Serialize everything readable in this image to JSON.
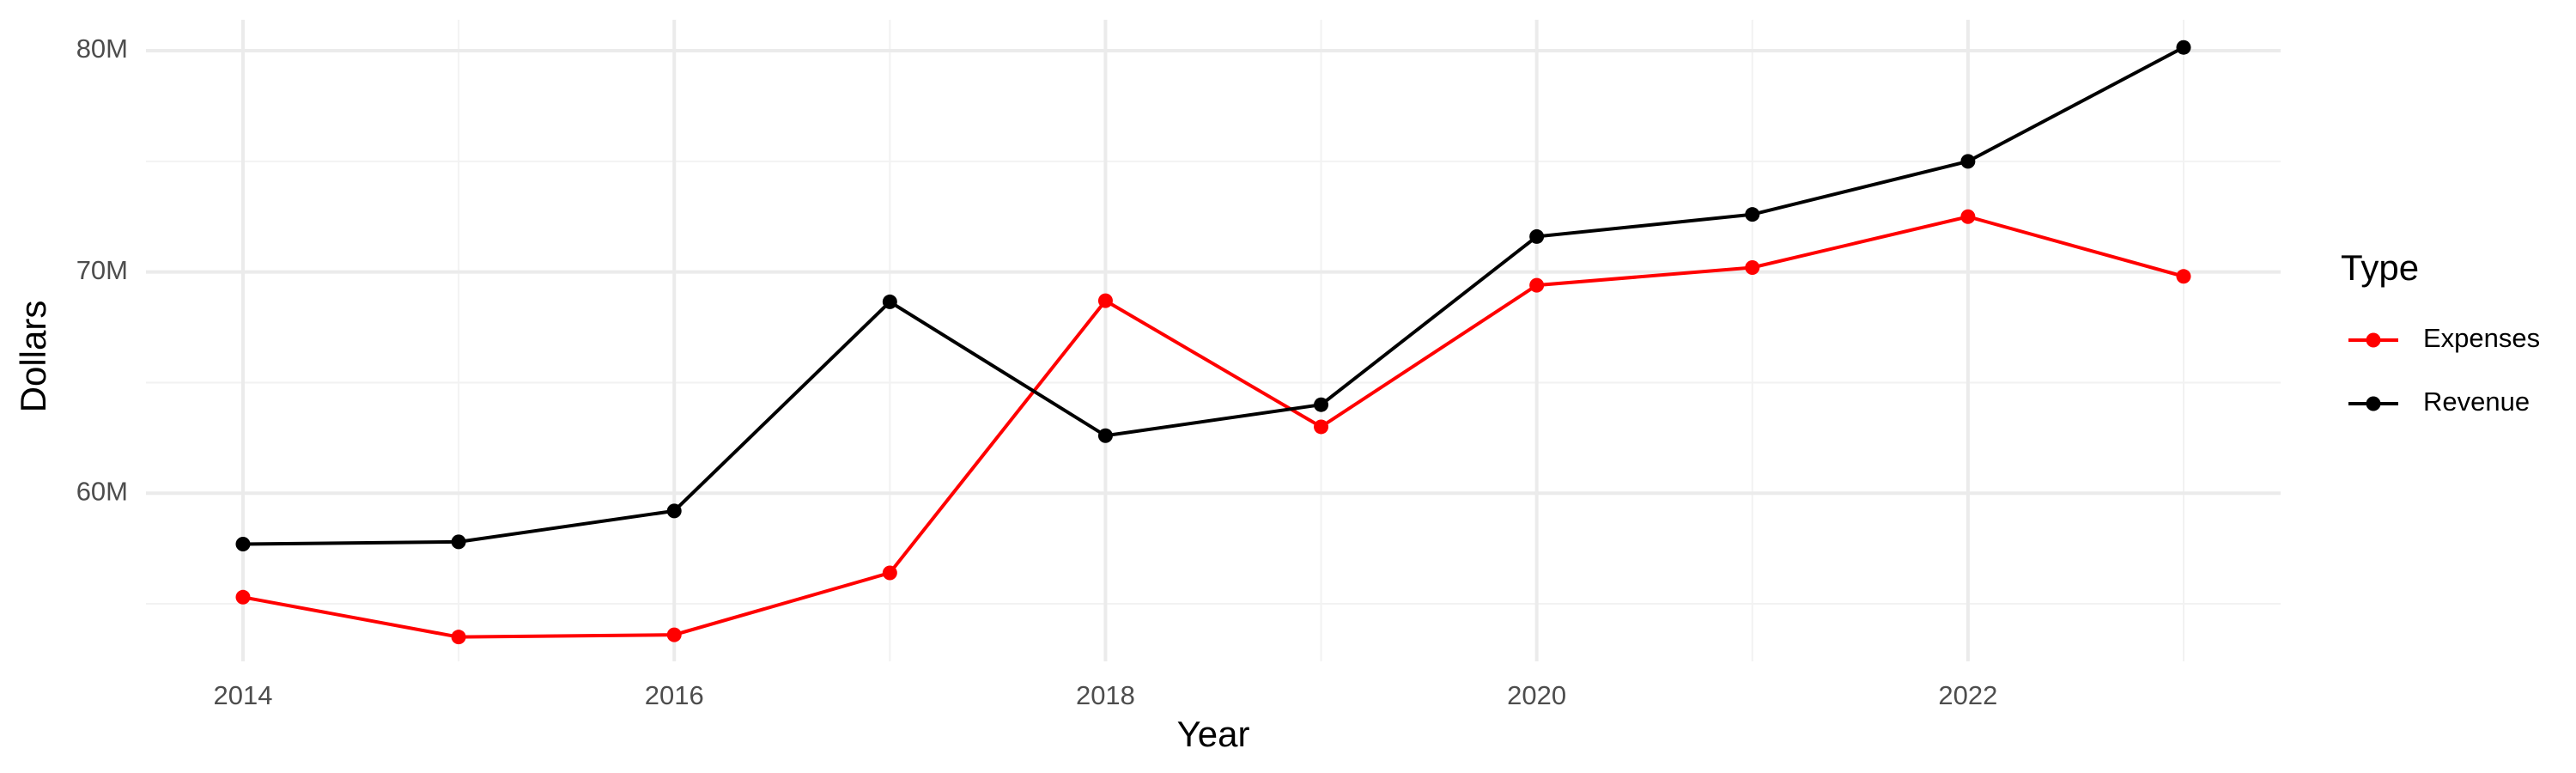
{
  "chart_data": {
    "type": "line",
    "x_label": "Year",
    "y_label": "Dollars",
    "legend_title": "Type",
    "legend_position": "right",
    "x": [
      2014,
      2015,
      2016,
      2017,
      2018,
      2019,
      2020,
      2021,
      2022,
      2023
    ],
    "series": [
      {
        "name": "Expenses",
        "color": "#ff0000",
        "values": [
          55300000,
          53500000,
          53600000,
          56400000,
          68700000,
          63000000,
          69400000,
          70200000,
          72500000,
          69800000
        ]
      },
      {
        "name": "Revenue",
        "color": "#000000",
        "values": [
          57700000,
          57800000,
          59200000,
          68650000,
          62600000,
          64000000,
          71600000,
          72600000,
          75000000,
          80150000
        ]
      }
    ],
    "xlim": [
      2013.55,
      2023.45
    ],
    "xticks": [
      2014,
      2016,
      2018,
      2020,
      2022
    ],
    "ylim": [
      52400000,
      81400000
    ],
    "yticks": [
      {
        "value": 60000000,
        "label": "60M"
      },
      {
        "value": 70000000,
        "label": "70M"
      },
      {
        "value": 80000000,
        "label": "80M"
      }
    ],
    "grid": true
  }
}
